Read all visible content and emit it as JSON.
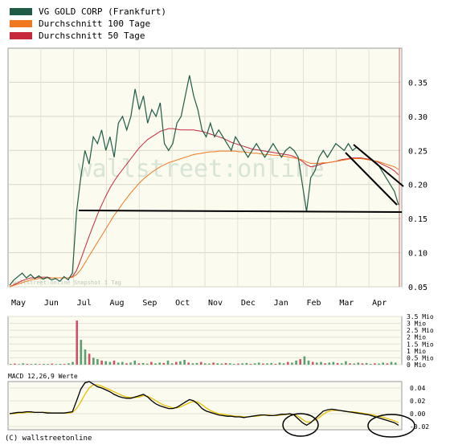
{
  "legend": [
    {
      "label": "VG GOLD CORP (Frankfurt)",
      "color": "#1f5c46"
    },
    {
      "label": "Durchschnitt 100 Tage",
      "color": "#f07820"
    },
    {
      "label": "Durchschnitt 50 Tage",
      "color": "#c8283c"
    }
  ],
  "watermark": "wallstreet:online",
  "mini_watermark": "wallstreet:online Snapshot 1 Tag",
  "macd_label": "MACD 12,26,9 Werte",
  "copyright": "(C) wallstreetonline",
  "chart_data": [
    {
      "type": "line",
      "name": "price",
      "x_ticks": [
        "May",
        "Jun",
        "Jul",
        "Aug",
        "Sep",
        "Oct",
        "Nov",
        "Dec",
        "Jan",
        "Feb",
        "Mar",
        "Apr"
      ],
      "y_ticks": [
        "0.05",
        "0.10",
        "0.15",
        "0.20",
        "0.25",
        "0.30",
        "0.35"
      ],
      "ylim": [
        0.05,
        0.4
      ],
      "series": [
        {
          "name": "VG GOLD CORP (Frankfurt)",
          "color": "#1f5c46",
          "values": [
            0.052,
            0.06,
            0.065,
            0.07,
            0.063,
            0.068,
            0.062,
            0.066,
            0.061,
            0.064,
            0.06,
            0.062,
            0.058,
            0.065,
            0.06,
            0.07,
            0.16,
            0.21,
            0.25,
            0.23,
            0.27,
            0.26,
            0.28,
            0.25,
            0.27,
            0.24,
            0.29,
            0.3,
            0.28,
            0.3,
            0.34,
            0.31,
            0.33,
            0.29,
            0.31,
            0.3,
            0.32,
            0.26,
            0.25,
            0.26,
            0.29,
            0.3,
            0.33,
            0.36,
            0.33,
            0.31,
            0.28,
            0.27,
            0.29,
            0.27,
            0.28,
            0.27,
            0.26,
            0.25,
            0.27,
            0.26,
            0.25,
            0.24,
            0.25,
            0.26,
            0.25,
            0.24,
            0.25,
            0.26,
            0.25,
            0.24,
            0.25,
            0.255,
            0.25,
            0.24,
            0.2,
            0.16,
            0.21,
            0.22,
            0.24,
            0.25,
            0.24,
            0.25,
            0.26,
            0.255,
            0.25,
            0.26,
            0.25,
            0.255,
            0.25,
            0.245,
            0.24,
            0.235,
            0.23,
            0.22,
            0.21,
            0.2,
            0.19,
            0.17
          ]
        },
        {
          "name": "Durchschnitt 100 Tage",
          "color": "#f07820",
          "values": [
            0.05,
            0.052,
            0.054,
            0.056,
            0.058,
            0.06,
            0.061,
            0.062,
            0.062,
            0.063,
            0.063,
            0.063,
            0.063,
            0.063,
            0.063,
            0.064,
            0.068,
            0.075,
            0.085,
            0.095,
            0.105,
            0.115,
            0.125,
            0.135,
            0.145,
            0.155,
            0.163,
            0.172,
            0.18,
            0.188,
            0.195,
            0.202,
            0.208,
            0.213,
            0.218,
            0.222,
            0.226,
            0.229,
            0.232,
            0.234,
            0.236,
            0.238,
            0.24,
            0.242,
            0.244,
            0.245,
            0.246,
            0.247,
            0.248,
            0.248,
            0.249,
            0.249,
            0.249,
            0.249,
            0.249,
            0.248,
            0.248,
            0.247,
            0.246,
            0.246,
            0.245,
            0.244,
            0.244,
            0.243,
            0.243,
            0.242,
            0.241,
            0.24,
            0.239,
            0.238,
            0.236,
            0.233,
            0.231,
            0.231,
            0.231,
            0.232,
            0.232,
            0.233,
            0.234,
            0.235,
            0.236,
            0.237,
            0.238,
            0.238,
            0.238,
            0.237,
            0.236,
            0.235,
            0.234,
            0.232,
            0.23,
            0.228,
            0.226,
            0.222
          ]
        },
        {
          "name": "Durchschnitt 50 Tage",
          "color": "#c8283c",
          "values": [
            0.05,
            0.053,
            0.056,
            0.059,
            0.061,
            0.063,
            0.063,
            0.064,
            0.064,
            0.064,
            0.063,
            0.063,
            0.063,
            0.063,
            0.063,
            0.065,
            0.074,
            0.09,
            0.107,
            0.124,
            0.14,
            0.156,
            0.17,
            0.183,
            0.195,
            0.205,
            0.214,
            0.222,
            0.23,
            0.238,
            0.246,
            0.254,
            0.26,
            0.266,
            0.27,
            0.274,
            0.278,
            0.28,
            0.282,
            0.282,
            0.281,
            0.28,
            0.28,
            0.28,
            0.28,
            0.279,
            0.278,
            0.276,
            0.274,
            0.272,
            0.27,
            0.268,
            0.265,
            0.262,
            0.26,
            0.258,
            0.256,
            0.254,
            0.252,
            0.251,
            0.25,
            0.249,
            0.248,
            0.247,
            0.246,
            0.245,
            0.244,
            0.243,
            0.241,
            0.238,
            0.234,
            0.229,
            0.226,
            0.227,
            0.229,
            0.231,
            0.232,
            0.233,
            0.234,
            0.236,
            0.237,
            0.238,
            0.239,
            0.239,
            0.239,
            0.238,
            0.237,
            0.235,
            0.233,
            0.23,
            0.227,
            0.224,
            0.22,
            0.214
          ]
        }
      ]
    },
    {
      "type": "bar",
      "name": "volume",
      "y_ticks": [
        "0 Mio",
        "0.5 Mio",
        "1 Mio",
        "1.5 Mio",
        "2 Mio",
        "2.5 Mio",
        "3 Mio",
        "3.5 Mio"
      ],
      "ylim": [
        0,
        3.5
      ],
      "values": [
        0.05,
        0.08,
        0.04,
        0.1,
        0.06,
        0.05,
        0.07,
        0.04,
        0.06,
        0.05,
        0.08,
        0.04,
        0.06,
        0.05,
        0.1,
        0.2,
        3.2,
        1.8,
        1.1,
        0.8,
        0.5,
        0.4,
        0.3,
        0.25,
        0.2,
        0.3,
        0.15,
        0.2,
        0.1,
        0.15,
        0.3,
        0.1,
        0.12,
        0.08,
        0.2,
        0.1,
        0.15,
        0.12,
        0.3,
        0.1,
        0.2,
        0.25,
        0.35,
        0.15,
        0.1,
        0.12,
        0.2,
        0.1,
        0.08,
        0.15,
        0.1,
        0.08,
        0.12,
        0.1,
        0.06,
        0.08,
        0.1,
        0.12,
        0.05,
        0.1,
        0.15,
        0.08,
        0.1,
        0.12,
        0.06,
        0.15,
        0.1,
        0.2,
        0.15,
        0.3,
        0.4,
        0.6,
        0.3,
        0.2,
        0.15,
        0.2,
        0.1,
        0.15,
        0.2,
        0.12,
        0.1,
        0.25,
        0.1,
        0.08,
        0.15,
        0.1,
        0.12,
        0.06,
        0.1,
        0.08,
        0.15,
        0.1,
        0.2,
        0.15
      ]
    },
    {
      "type": "line",
      "name": "macd",
      "y_ticks": [
        "-0.02",
        "0.00",
        "0.02",
        "0.04"
      ],
      "ylim": [
        -0.025,
        0.05
      ],
      "series": [
        {
          "name": "MACD",
          "color": "#000000",
          "values": [
            0.0,
            0.001,
            0.002,
            0.002,
            0.003,
            0.003,
            0.002,
            0.002,
            0.002,
            0.001,
            0.001,
            0.001,
            0.001,
            0.001,
            0.002,
            0.003,
            0.02,
            0.038,
            0.048,
            0.05,
            0.046,
            0.042,
            0.04,
            0.037,
            0.034,
            0.03,
            0.027,
            0.025,
            0.024,
            0.024,
            0.026,
            0.028,
            0.03,
            0.026,
            0.02,
            0.015,
            0.012,
            0.01,
            0.008,
            0.008,
            0.01,
            0.014,
            0.018,
            0.022,
            0.02,
            0.015,
            0.008,
            0.004,
            0.002,
            0.0,
            -0.002,
            -0.003,
            -0.004,
            -0.004,
            -0.005,
            -0.005,
            -0.006,
            -0.005,
            -0.004,
            -0.003,
            -0.002,
            -0.002,
            -0.003,
            -0.003,
            -0.002,
            -0.001,
            -0.001,
            0.0,
            -0.002,
            -0.008,
            -0.014,
            -0.018,
            -0.014,
            -0.008,
            -0.002,
            0.004,
            0.006,
            0.007,
            0.006,
            0.005,
            0.004,
            0.003,
            0.002,
            0.001,
            0.0,
            -0.001,
            -0.002,
            -0.004,
            -0.006,
            -0.008,
            -0.01,
            -0.012,
            -0.014,
            -0.018
          ]
        },
        {
          "name": "Signal",
          "color": "#e8c000",
          "values": [
            0.0,
            0.0,
            0.001,
            0.001,
            0.002,
            0.002,
            0.002,
            0.002,
            0.002,
            0.002,
            0.001,
            0.001,
            0.001,
            0.001,
            0.001,
            0.002,
            0.008,
            0.018,
            0.03,
            0.04,
            0.045,
            0.045,
            0.043,
            0.04,
            0.037,
            0.034,
            0.031,
            0.028,
            0.026,
            0.025,
            0.025,
            0.026,
            0.028,
            0.027,
            0.024,
            0.02,
            0.016,
            0.013,
            0.011,
            0.009,
            0.009,
            0.011,
            0.014,
            0.017,
            0.019,
            0.018,
            0.014,
            0.009,
            0.005,
            0.002,
            0.0,
            -0.001,
            -0.002,
            -0.003,
            -0.004,
            -0.004,
            -0.005,
            -0.005,
            -0.004,
            -0.004,
            -0.003,
            -0.002,
            -0.002,
            -0.003,
            -0.003,
            -0.002,
            -0.001,
            -0.001,
            -0.001,
            -0.004,
            -0.009,
            -0.013,
            -0.013,
            -0.01,
            -0.006,
            -0.001,
            0.003,
            0.005,
            0.005,
            0.005,
            0.004,
            0.003,
            0.003,
            0.002,
            0.001,
            0.0,
            -0.001,
            -0.002,
            -0.004,
            -0.005,
            -0.007,
            -0.009,
            -0.011,
            -0.014
          ]
        }
      ]
    }
  ]
}
